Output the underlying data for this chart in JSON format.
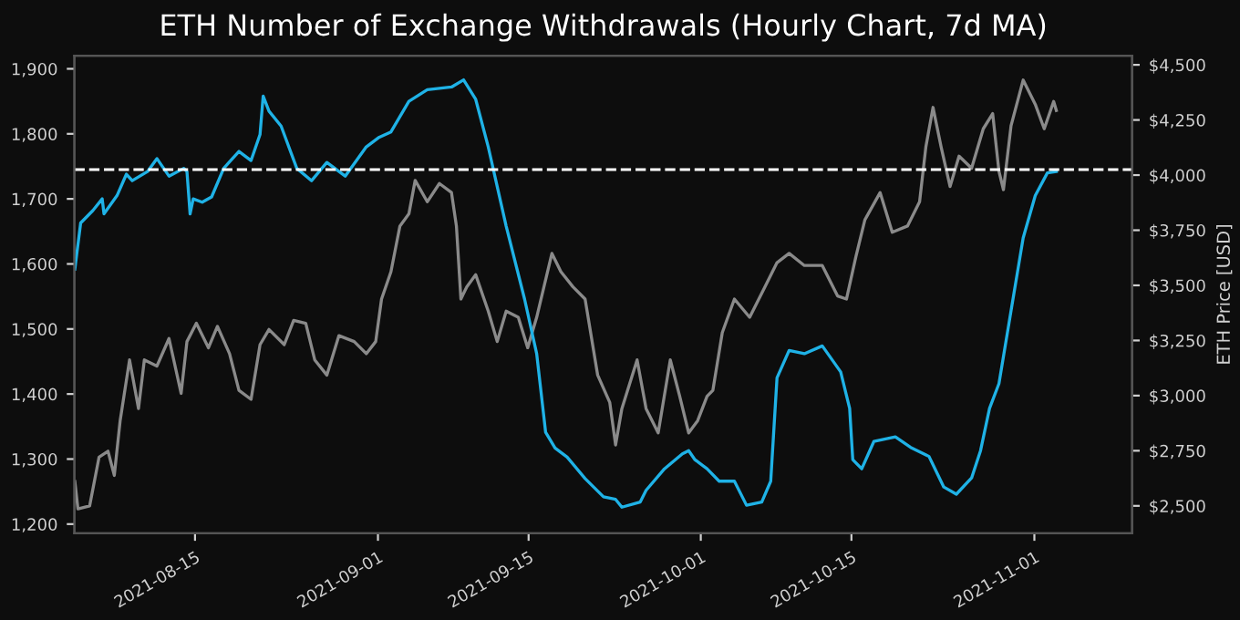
{
  "chart_data": {
    "type": "line",
    "title": "ETH Number of Exchange Withdrawals (Hourly Chart, 7d MA)",
    "y2label": "ETH Price [USD]",
    "series": [
      {
        "axis": "y2",
        "color": "#8a8a8a",
        "x": [
          "2021-08-03T20:00",
          "2021-08-04T03:00",
          "2021-08-05T05:00",
          "2021-08-06T02:00",
          "2021-08-06T22:00",
          "2021-08-07T12:00",
          "2021-08-08T01:00",
          "2021-08-08T22:00",
          "2021-08-09T18:00",
          "2021-08-10T07:00",
          "2021-08-11T11:00",
          "2021-08-12T14:00",
          "2021-08-13T17:00",
          "2021-08-14T06:00",
          "2021-08-15T03:00",
          "2021-08-16T06:00",
          "2021-08-17T02:00",
          "2021-08-18T05:00",
          "2021-08-19T02:00",
          "2021-08-20T05:00",
          "2021-08-21T01:00",
          "2021-08-21T21:00",
          "2021-08-23T07:00",
          "2021-08-24T04:00",
          "2021-08-25T07:00",
          "2021-08-26T03:00",
          "2021-08-27T06:00",
          "2021-08-28T09:00",
          "2021-08-29T19:00",
          "2021-08-30T22:00",
          "2021-08-31T19:00",
          "2021-09-01T08:00",
          "2021-09-02T05:00",
          "2021-09-03T01:00",
          "2021-09-03T21:00",
          "2021-09-04T11:00",
          "2021-09-05T14:00",
          "2021-09-06T17:00",
          "2021-09-07T20:00",
          "2021-09-08T07:00",
          "2021-09-08T17:00",
          "2021-09-09T06:00",
          "2021-09-10T02:00",
          "2021-09-11T06:00",
          "2021-09-12T02:00",
          "2021-09-12T22:00",
          "2021-09-14T01:00",
          "2021-09-14T22:00",
          "2021-09-15T18:00",
          "2021-09-17T04:00",
          "2021-09-18T00:00",
          "2021-09-19T03:00",
          "2021-09-20T06:00",
          "2021-09-21T10:00",
          "2021-09-22T13:00",
          "2021-09-23T02:00",
          "2021-09-23T16:00",
          "2021-09-25T02:00",
          "2021-09-25T22:00",
          "2021-09-27T01:00",
          "2021-09-28T04:00",
          "2021-09-29T01:00",
          "2021-09-29T21:00",
          "2021-09-30T17:00",
          "2021-10-01T14:00",
          "2021-10-02T03:00",
          "2021-10-03T00:00",
          "2021-10-04T03:00",
          "2021-10-05T13:00",
          "2021-10-06T23:00",
          "2021-10-08T02:00",
          "2021-10-09T05:00",
          "2021-10-10T15:00",
          "2021-10-12T07:00",
          "2021-10-13T17:00",
          "2021-10-14T13:00",
          "2021-10-15T10:00",
          "2021-10-16T06:00",
          "2021-10-17T16:00",
          "2021-10-18T19:00",
          "2021-10-20T05:00",
          "2021-10-21T08:00",
          "2021-10-21T22:00",
          "2021-10-22T14:00",
          "2021-10-23T08:00",
          "2021-10-24T04:00",
          "2021-10-25T00:00",
          "2021-10-26T04:00",
          "2021-10-27T06:00",
          "2021-10-28T03:00",
          "2021-10-28T17:00",
          "2021-10-29T03:00",
          "2021-10-29T20:00",
          "2021-10-30T23:00",
          "2021-11-01T02:00",
          "2021-11-01T22:00",
          "2021-11-02T19:00",
          "2021-11-03T01:00"
        ],
        "values": [
          2610,
          2486,
          2500,
          2721,
          2748,
          2638,
          2886,
          3162,
          2941,
          3162,
          3134,
          3259,
          3010,
          3245,
          3328,
          3217,
          3314,
          3190,
          3024,
          2983,
          3231,
          3300,
          3231,
          3341,
          3328,
          3162,
          3093,
          3272,
          3245,
          3190,
          3245,
          3438,
          3562,
          3769,
          3824,
          3976,
          3879,
          3962,
          3921,
          3769,
          3438,
          3493,
          3548,
          3383,
          3245,
          3383,
          3355,
          3217,
          3355,
          3645,
          3562,
          3493,
          3438,
          3093,
          2969,
          2776,
          2941,
          3162,
          2941,
          2831,
          3162,
          2997,
          2831,
          2886,
          2997,
          3024,
          3286,
          3438,
          3355,
          3493,
          3603,
          3645,
          3590,
          3590,
          3452,
          3438,
          3631,
          3797,
          3921,
          3741,
          3769,
          3879,
          4128,
          4307,
          4128,
          3948,
          4086,
          4031,
          4210,
          4279,
          4017,
          3934,
          4224,
          4431,
          4321,
          4210,
          4334,
          4293
        ]
      },
      {
        "axis": "y",
        "color": "#1fb2e6",
        "x": [
          "2021-08-03T20:00",
          "2021-08-04T09:00",
          "2021-08-05T12:00",
          "2021-08-06T09:00",
          "2021-08-06T13:00",
          "2021-08-07T18:00",
          "2021-08-08T15:00",
          "2021-08-09T04:00",
          "2021-08-10T14:00",
          "2021-08-11T11:00",
          "2021-08-12T14:00",
          "2021-08-13T23:00",
          "2021-08-14T06:00",
          "2021-08-14T13:00",
          "2021-08-14T20:00",
          "2021-08-15T16:00",
          "2021-08-16T13:00",
          "2021-08-17T16:00",
          "2021-08-19T02:00",
          "2021-08-20T05:00",
          "2021-08-21T01:00",
          "2021-08-21T08:00",
          "2021-08-21T21:00",
          "2021-08-23T00:00",
          "2021-08-24T11:00",
          "2021-08-25T20:00",
          "2021-08-27T06:00",
          "2021-08-28T23:00",
          "2021-08-30T22:00",
          "2021-09-01T01:00",
          "2021-09-02T05:00",
          "2021-09-03T21:00",
          "2021-09-05T14:00",
          "2021-09-07T20:00",
          "2021-09-08T23:00",
          "2021-09-10T02:00",
          "2021-09-11T06:00",
          "2021-09-12T22:00",
          "2021-09-14T15:00",
          "2021-09-15T18:00",
          "2021-09-16T14:00",
          "2021-09-17T11:00",
          "2021-09-18T14:00",
          "2021-09-20T06:00",
          "2021-09-21T23:00",
          "2021-09-23T02:00",
          "2021-09-23T16:00",
          "2021-09-25T09:00",
          "2021-09-25T22:00",
          "2021-09-27T15:00",
          "2021-09-29T07:00",
          "2021-09-29T21:00",
          "2021-09-30T11:00",
          "2021-10-01T14:00",
          "2021-10-02T17:00",
          "2021-10-04T03:00",
          "2021-10-05T06:00",
          "2021-10-06T16:00",
          "2021-10-07T12:00",
          "2021-10-08T02:00",
          "2021-10-09T05:00",
          "2021-10-10T15:00",
          "2021-10-12T07:00",
          "2021-10-14T00:00",
          "2021-10-14T20:00",
          "2021-10-15T03:00",
          "2021-10-15T23:00",
          "2021-10-17T02:00",
          "2021-10-19T02:00",
          "2021-10-20T12:00",
          "2021-10-22T05:00",
          "2021-10-23T14:00",
          "2021-10-24T18:00",
          "2021-10-26T04:00",
          "2021-10-27T00:00",
          "2021-10-27T20:00",
          "2021-10-28T17:00",
          "2021-10-29T20:00",
          "2021-10-30T23:00",
          "2021-11-01T02:00",
          "2021-11-02T05:00",
          "2021-11-03T01:00"
        ],
        "values": [
          1592,
          1663,
          1682,
          1700,
          1677,
          1705,
          1738,
          1728,
          1742,
          1762,
          1735,
          1747,
          1742,
          1677,
          1700,
          1695,
          1703,
          1747,
          1773,
          1759,
          1799,
          1858,
          1835,
          1812,
          1747,
          1728,
          1756,
          1735,
          1780,
          1794,
          1803,
          1850,
          1868,
          1872,
          1883,
          1853,
          1780,
          1658,
          1546,
          1462,
          1341,
          1317,
          1303,
          1270,
          1242,
          1238,
          1226,
          1234,
          1252,
          1285,
          1308,
          1313,
          1299,
          1285,
          1266,
          1266,
          1229,
          1234,
          1266,
          1425,
          1467,
          1462,
          1474,
          1434,
          1378,
          1299,
          1285,
          1327,
          1334,
          1318,
          1304,
          1257,
          1246,
          1271,
          1313,
          1378,
          1416,
          1528,
          1640,
          1705,
          1740,
          1742
        ]
      }
    ],
    "ref_lines": [
      {
        "axis": "y",
        "value": 1745,
        "color": "#ffffff",
        "line_style": "dashed"
      }
    ],
    "xlim": [
      "2021-08-03T19:00",
      "2021-11-10T02:00"
    ],
    "xticks": [
      "2021-08-15",
      "2021-09-01",
      "2021-09-15",
      "2021-10-01",
      "2021-10-15",
      "2021-11-01"
    ],
    "ylim": [
      1186,
      1920
    ],
    "yticks": [
      {
        "value": 1200,
        "label": "1,200"
      },
      {
        "value": 1300,
        "label": "1,300"
      },
      {
        "value": 1400,
        "label": "1,400"
      },
      {
        "value": 1500,
        "label": "1,500"
      },
      {
        "value": 1600,
        "label": "1,600"
      },
      {
        "value": 1700,
        "label": "1,700"
      },
      {
        "value": 1800,
        "label": "1,800"
      },
      {
        "value": 1900,
        "label": "1,900"
      }
    ],
    "y2lim": [
      2376,
      4541
    ],
    "y2ticks": [
      {
        "value": 2500,
        "label": "$2,500"
      },
      {
        "value": 2750,
        "label": "$2,750"
      },
      {
        "value": 3000,
        "label": "$3,000"
      },
      {
        "value": 3250,
        "label": "$3,250"
      },
      {
        "value": 3500,
        "label": "$3,500"
      },
      {
        "value": 3750,
        "label": "$3,750"
      },
      {
        "value": 4000,
        "label": "$4,000"
      },
      {
        "value": 4250,
        "label": "$4,250"
      },
      {
        "value": 4500,
        "label": "$4,500"
      }
    ],
    "grid": false,
    "legend": false,
    "line_style": "solid",
    "marker": "none"
  }
}
